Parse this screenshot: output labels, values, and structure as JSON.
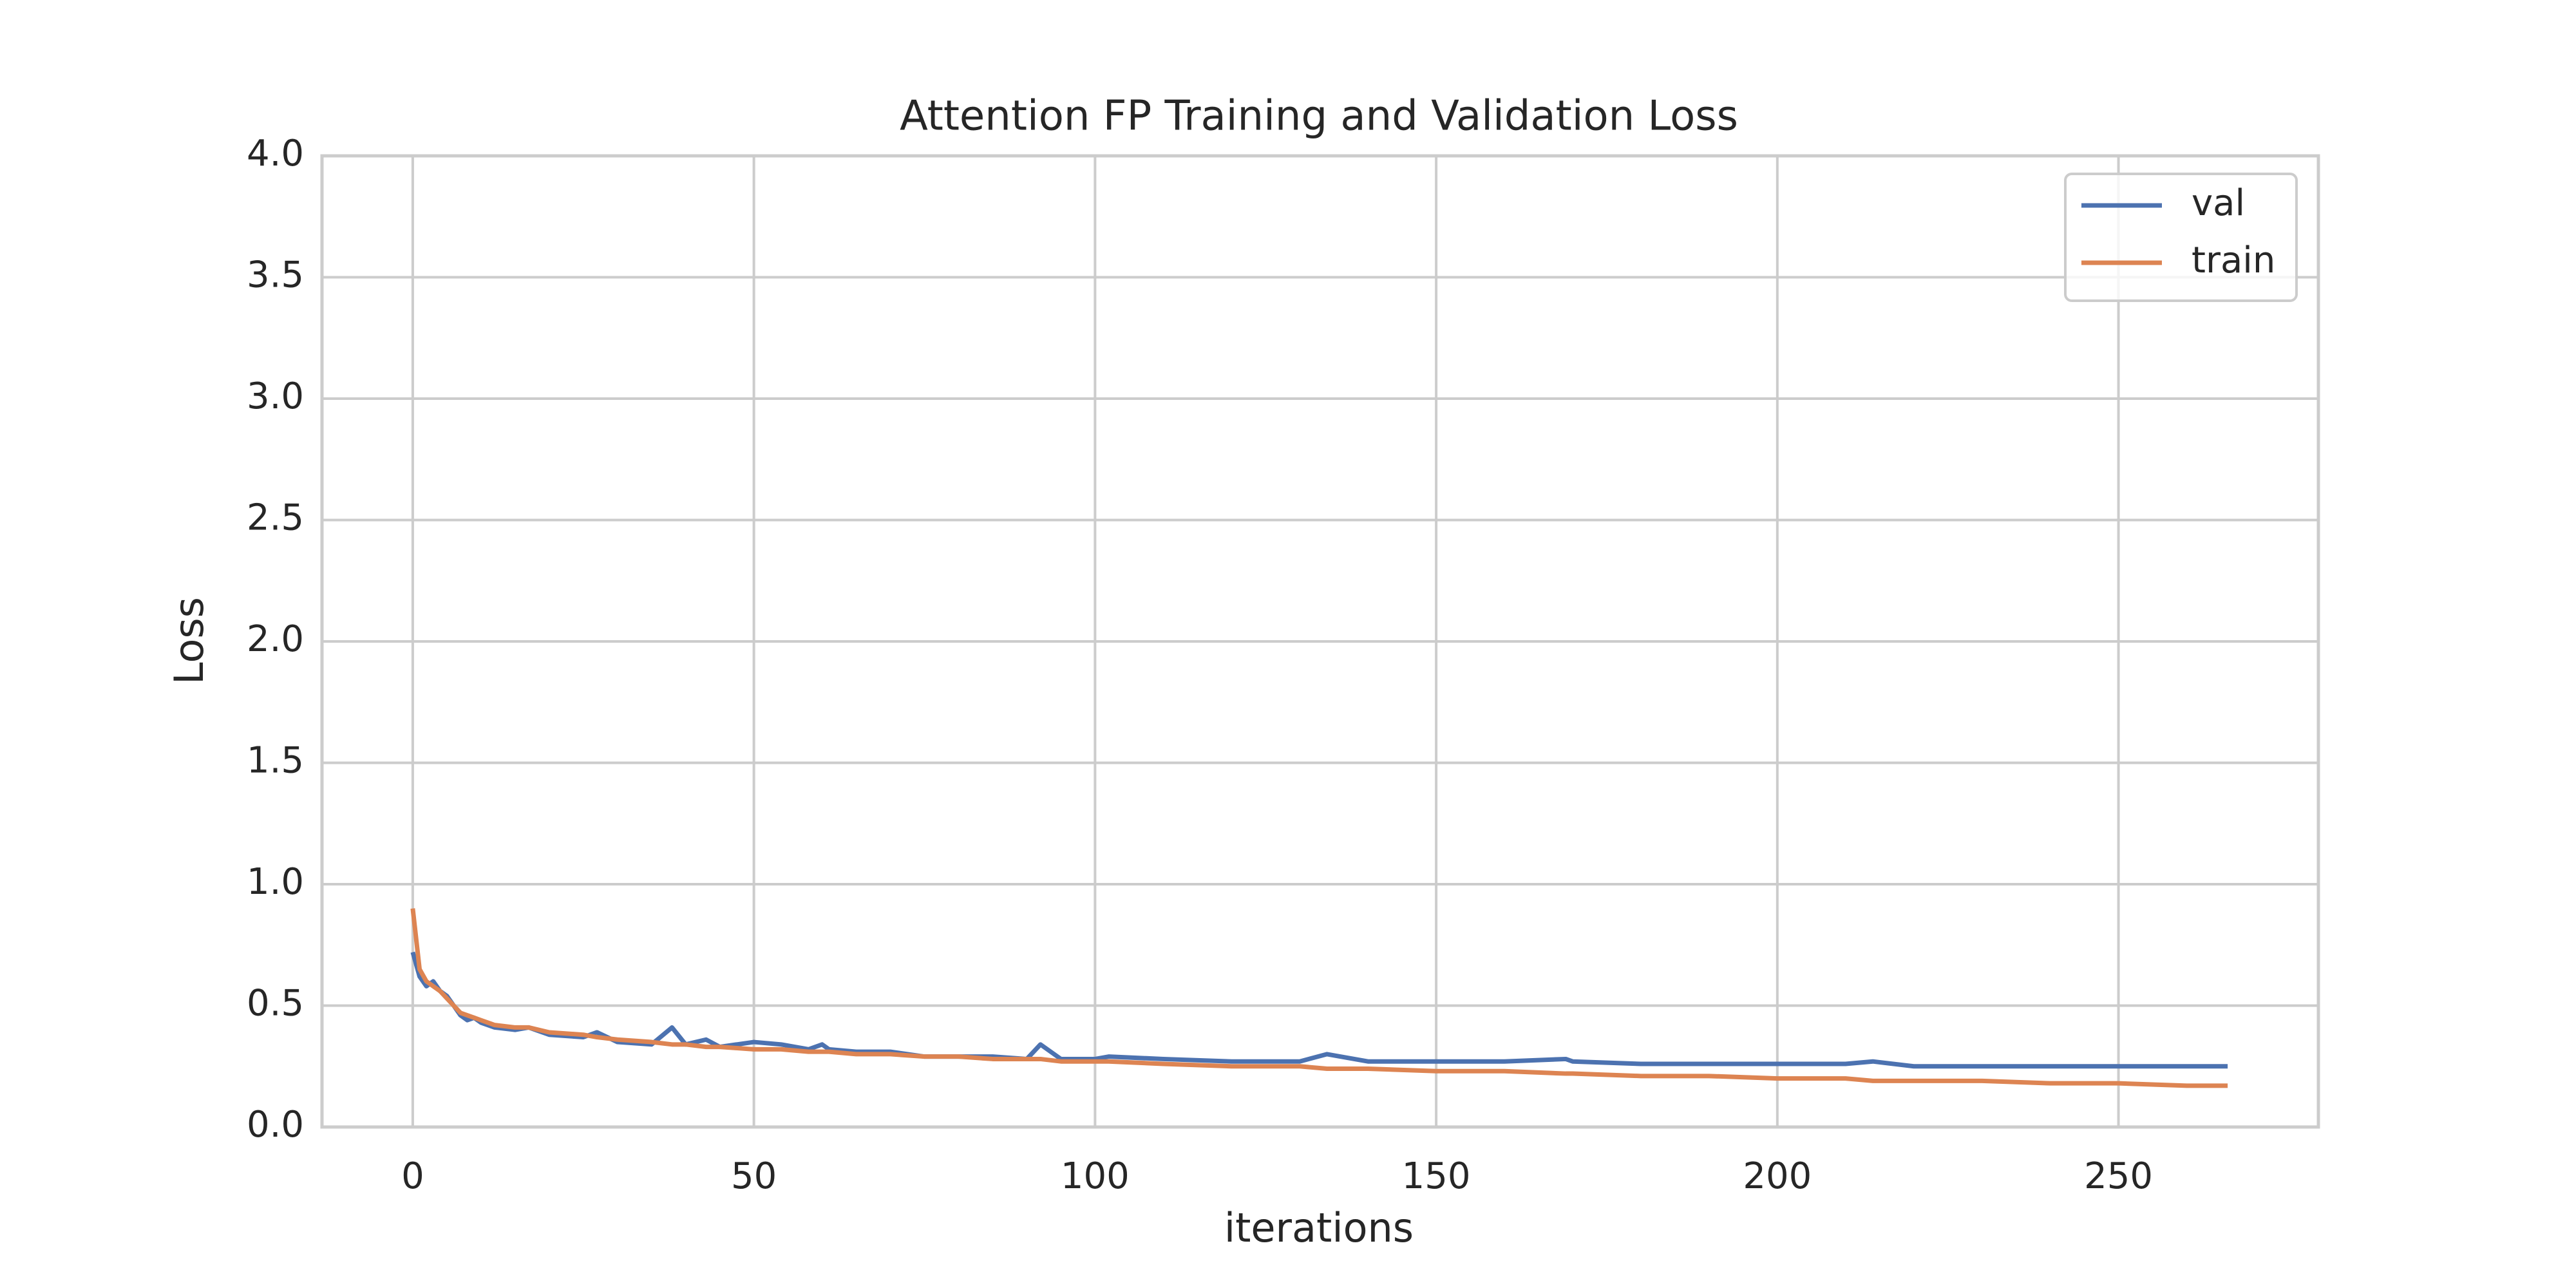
{
  "chart_data": {
    "type": "line",
    "title": "Attention FP Training and Validation Loss",
    "x_label": "iterations",
    "y_label": "Loss",
    "x": [
      0,
      1,
      2,
      3,
      4,
      5,
      6,
      7,
      8,
      9,
      10,
      12,
      15,
      17,
      20,
      25,
      27,
      30,
      35,
      38,
      40,
      43,
      45,
      50,
      54,
      58,
      60,
      61,
      65,
      70,
      75,
      80,
      85,
      90,
      92,
      95,
      100,
      102,
      110,
      120,
      130,
      134,
      140,
      150,
      160,
      169,
      170,
      180,
      190,
      200,
      210,
      214,
      220,
      230,
      240,
      250,
      260,
      266
    ],
    "series": [
      {
        "name": "val",
        "color": "#4c72b0",
        "values": [
          0.72,
          0.62,
          0.58,
          0.6,
          0.56,
          0.54,
          0.5,
          0.46,
          0.44,
          0.45,
          0.43,
          0.41,
          0.4,
          0.41,
          0.38,
          0.37,
          0.39,
          0.35,
          0.34,
          0.41,
          0.34,
          0.36,
          0.33,
          0.35,
          0.34,
          0.32,
          0.34,
          0.32,
          0.31,
          0.31,
          0.29,
          0.29,
          0.29,
          0.28,
          0.34,
          0.28,
          0.28,
          0.29,
          0.28,
          0.27,
          0.27,
          0.3,
          0.27,
          0.27,
          0.27,
          0.28,
          0.27,
          0.26,
          0.26,
          0.26,
          0.26,
          0.27,
          0.25,
          0.25,
          0.25,
          0.25,
          0.25,
          0.25
        ]
      },
      {
        "name": "train",
        "color": "#dd8452",
        "values": [
          0.9,
          0.65,
          0.6,
          0.58,
          0.56,
          0.53,
          0.5,
          0.47,
          0.46,
          0.45,
          0.44,
          0.42,
          0.41,
          0.41,
          0.39,
          0.38,
          0.37,
          0.36,
          0.35,
          0.34,
          0.34,
          0.33,
          0.33,
          0.32,
          0.32,
          0.31,
          0.31,
          0.31,
          0.3,
          0.3,
          0.29,
          0.29,
          0.28,
          0.28,
          0.28,
          0.27,
          0.27,
          0.27,
          0.26,
          0.25,
          0.25,
          0.24,
          0.24,
          0.23,
          0.23,
          0.22,
          0.22,
          0.21,
          0.21,
          0.2,
          0.2,
          0.19,
          0.19,
          0.19,
          0.18,
          0.18,
          0.17,
          0.17
        ]
      }
    ],
    "xlim": [
      -13.3,
      279.3
    ],
    "ylim": [
      0,
      4
    ],
    "xticks": [
      0,
      50,
      100,
      150,
      200,
      250
    ],
    "yticks": [
      {
        "value": 0,
        "label": "0.0"
      },
      0.5,
      {
        "value": 1,
        "label": "1.0"
      },
      1.5,
      {
        "value": 2,
        "label": "2.0"
      },
      2.5,
      {
        "value": 3,
        "label": "3.0"
      },
      3.5,
      {
        "value": 4,
        "label": "4.0"
      }
    ],
    "grid": true,
    "legend": "upper right"
  }
}
